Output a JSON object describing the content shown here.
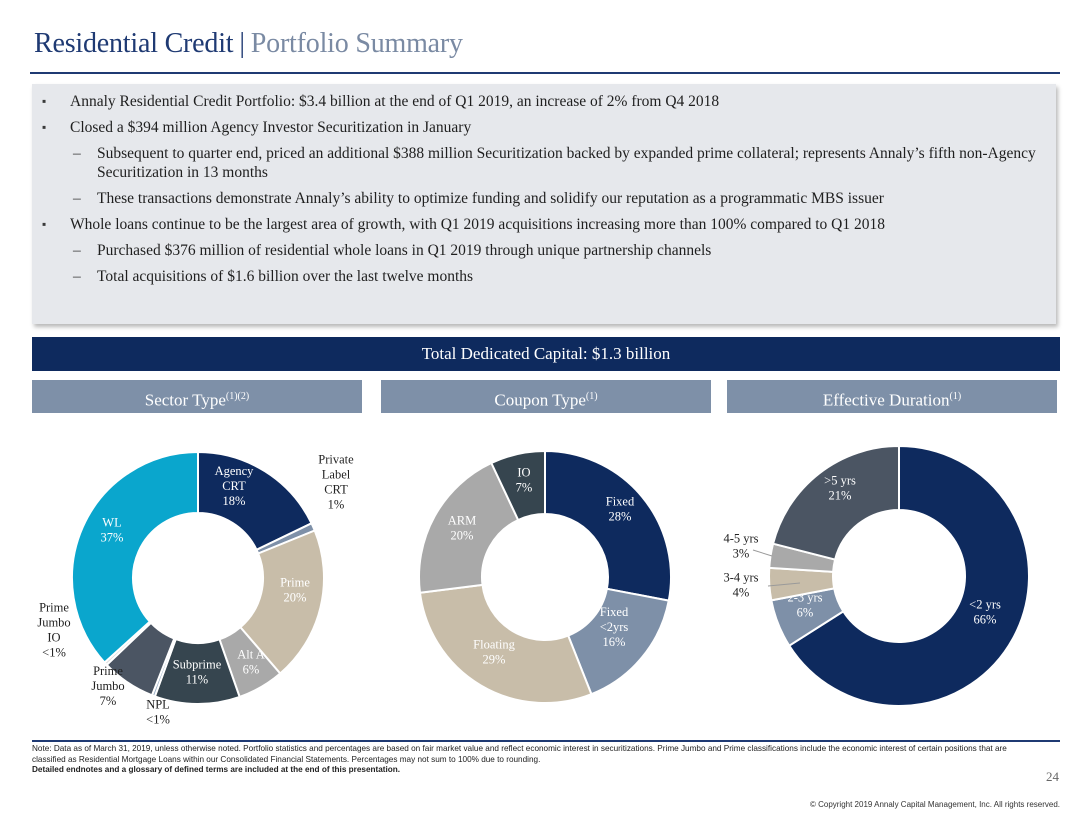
{
  "title": {
    "main": "Residential Credit",
    "separator": "|",
    "sub": "Portfolio Summary"
  },
  "summary": {
    "bullets": [
      {
        "level": 1,
        "text": "Annaly Residential Credit Portfolio: $3.4 billion at the end of Q1 2019, an increase of 2% from Q4 2018"
      },
      {
        "level": 1,
        "text": "Closed a $394 million Agency Investor Securitization in January"
      },
      {
        "level": 2,
        "text": "Subsequent to quarter end, priced an additional $388 million Securitization backed by expanded prime collateral; represents Annaly’s fifth non-Agency Securitization in 13 months"
      },
      {
        "level": 2,
        "text": "These transactions demonstrate Annaly’s ability to optimize funding and solidify our reputation as a programmatic MBS issuer"
      },
      {
        "level": 1,
        "text": "Whole loans continue to be the largest area of growth, with Q1 2019 acquisitions increasing more than 100% compared to Q1 2018"
      },
      {
        "level": 2,
        "text": "Purchased $376 million of residential whole loans in Q1 2019 through unique partnership channels"
      },
      {
        "level": 2,
        "text": "Total acquisitions of $1.6 billion over the last twelve months"
      }
    ]
  },
  "band_label": "Total Dedicated Capital: $1.3 billion",
  "subheads": {
    "sector": {
      "label": "Sector Type",
      "sup": "(1)(2)"
    },
    "coupon": {
      "label": "Coupon Type",
      "sup": "(1)"
    },
    "duration": {
      "label": "Effective Duration",
      "sup": "(1)"
    }
  },
  "chart_data": [
    {
      "type": "pie",
      "title": "Sector Type",
      "slices": [
        {
          "label": "Agency CRT",
          "lines": [
            "Agency",
            "CRT",
            "18%"
          ],
          "value": 18,
          "color": "#0e2a5e",
          "text_color": "#ffffff"
        },
        {
          "label": "Private Label CRT",
          "lines": [
            "Private",
            "Label",
            "CRT",
            "1%"
          ],
          "value": 1,
          "color": "#7e90a8",
          "text_color": "#222222"
        },
        {
          "label": "Prime",
          "lines": [
            "Prime",
            "20%"
          ],
          "value": 20,
          "color": "#c8bda9",
          "text_color": "#ffffff"
        },
        {
          "label": "Alt A",
          "lines": [
            "Alt A",
            "6%"
          ],
          "value": 6,
          "color": "#a9a9a9",
          "text_color": "#ffffff"
        },
        {
          "label": "Subprime",
          "lines": [
            "Subprime",
            "11%"
          ],
          "value": 11,
          "color": "#36454f",
          "text_color": "#ffffff"
        },
        {
          "label": "NPL",
          "lines": [
            "NPL",
            "<1%"
          ],
          "value": 0.4,
          "color": "#9bb0c8",
          "text_color": "#222222"
        },
        {
          "label": "Prime Jumbo",
          "lines": [
            "Prime",
            "Jumbo",
            "7%"
          ],
          "value": 7,
          "color": "#4b5563",
          "text_color": "#222222"
        },
        {
          "label": "Prime Jumbo IO",
          "lines": [
            "Prime",
            "Jumbo",
            "IO",
            "<1%"
          ],
          "value": 0.4,
          "color": "#dcdcdc",
          "text_color": "#222222"
        },
        {
          "label": "WL",
          "lines": [
            "WL",
            "37%"
          ],
          "value": 37,
          "color": "#0aa6cd",
          "text_color": "#ffffff"
        }
      ]
    },
    {
      "type": "pie",
      "title": "Coupon Type",
      "slices": [
        {
          "label": "Fixed",
          "lines": [
            "Fixed",
            "28%"
          ],
          "value": 28,
          "color": "#0e2a5e",
          "text_color": "#ffffff"
        },
        {
          "label": "Fixed <2yrs",
          "lines": [
            "Fixed",
            "<2yrs",
            "16%"
          ],
          "value": 16,
          "color": "#7e90a8",
          "text_color": "#ffffff"
        },
        {
          "label": "Floating",
          "lines": [
            "Floating",
            "29%"
          ],
          "value": 29,
          "color": "#c8bda9",
          "text_color": "#ffffff"
        },
        {
          "label": "ARM",
          "lines": [
            "ARM",
            "20%"
          ],
          "value": 20,
          "color": "#a9a9a9",
          "text_color": "#ffffff"
        },
        {
          "label": "IO",
          "lines": [
            "IO",
            "7%"
          ],
          "value": 7,
          "color": "#36454f",
          "text_color": "#ffffff"
        }
      ]
    },
    {
      "type": "pie",
      "title": "Effective Duration",
      "slices": [
        {
          "label": "<2 yrs",
          "lines": [
            "<2 yrs",
            "66%"
          ],
          "value": 66,
          "color": "#0e2a5e",
          "text_color": "#ffffff"
        },
        {
          "label": "2-3 yrs",
          "lines": [
            "2-3 yrs",
            "6%"
          ],
          "value": 6,
          "color": "#7e90a8",
          "text_color": "#ffffff"
        },
        {
          "label": "3-4 yrs",
          "lines": [
            "3-4 yrs",
            "4%"
          ],
          "value": 4,
          "color": "#c8bda9",
          "text_color": "#222222"
        },
        {
          "label": "4-5 yrs",
          "lines": [
            "4-5 yrs",
            "3%"
          ],
          "value": 3,
          "color": "#a9a9a9",
          "text_color": "#222222"
        },
        {
          "label": ">5 yrs",
          "lines": [
            ">5 yrs",
            "21%"
          ],
          "value": 21,
          "color": "#4b5563",
          "text_color": "#ffffff"
        }
      ]
    }
  ],
  "note": {
    "text": "Note: Data as of March 31, 2019, unless otherwise noted. Portfolio statistics and percentages are based on fair market value and reflect economic interest in securitizations. Prime Jumbo and Prime classifications include the economic interest of certain positions that are classified as Residential Mortgage Loans within our Consolidated Financial Statements. Percentages may not sum to 100% due to rounding.",
    "bold": "Detailed endnotes and a glossary of defined terms are included at the end of this presentation."
  },
  "page_number": "24",
  "copyright": "© Copyright 2019 Annaly Capital Management, Inc. All rights reserved."
}
